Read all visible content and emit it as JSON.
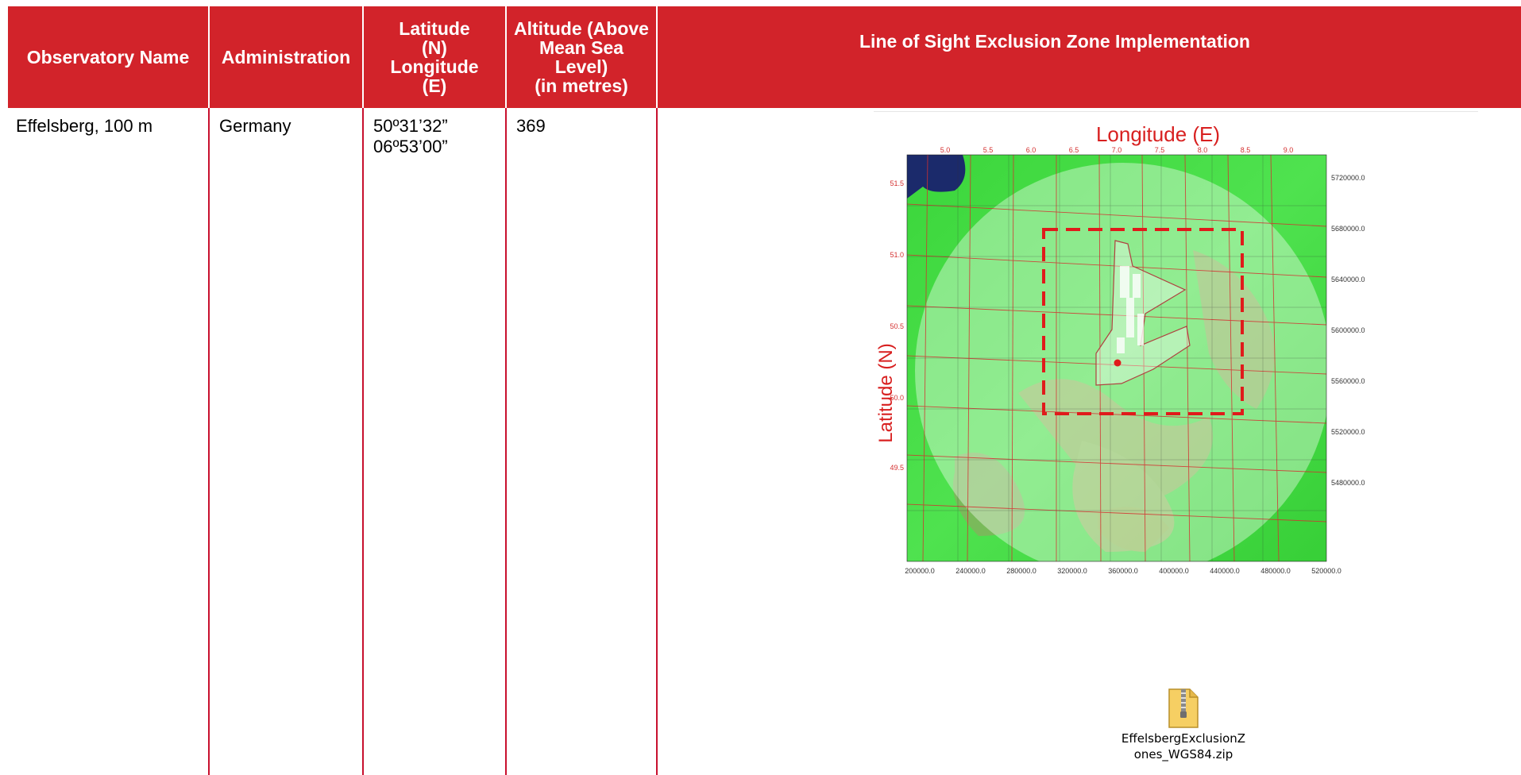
{
  "table": {
    "headers": {
      "name": "Observatory Name",
      "administration": "Administration",
      "lat_lon": [
        "Latitude",
        "(N)",
        "Longitude",
        "(E)"
      ],
      "altitude": [
        "Altitude (Above",
        "Mean Sea",
        "Level)",
        "(in metres)"
      ],
      "zone": "Line of Sight Exclusion Zone Implementation"
    },
    "row": {
      "name": "Effelsberg, 100 m",
      "administration": "Germany",
      "latitude": "50º31’32”",
      "longitude": "06º53’00”",
      "altitude": "369"
    }
  },
  "map": {
    "x_title": "Longitude (E)",
    "y_title": "Latitude (N)",
    "lon_ticks": [
      "5.0",
      "5.5",
      "6.0",
      "6.5",
      "7.0",
      "7.5",
      "8.0",
      "8.5",
      "9.0"
    ],
    "lat_ticks": [
      "51.5",
      "51.0",
      "50.5",
      "50.0",
      "49.5"
    ],
    "northing_ticks": [
      "5720000.0",
      "5680000.0",
      "5640000.0",
      "5600000.0",
      "5560000.0",
      "5520000.0",
      "5480000.0"
    ],
    "easting_ticks": [
      "200000.0",
      "240000.0",
      "280000.0",
      "320000.0",
      "360000.0",
      "400000.0",
      "440000.0",
      "480000.0",
      "520000.0"
    ],
    "colors": {
      "terrain": "#46e046",
      "circle": "#ffffff",
      "dashed_box": "#e01b1b",
      "grid": "#d43030",
      "title": "#d82020"
    }
  },
  "attachment": {
    "icon": "zip-file-icon",
    "filename_line1": "EffelsbergExclusionZ",
    "filename_line2": "ones_WGS84.zip"
  }
}
